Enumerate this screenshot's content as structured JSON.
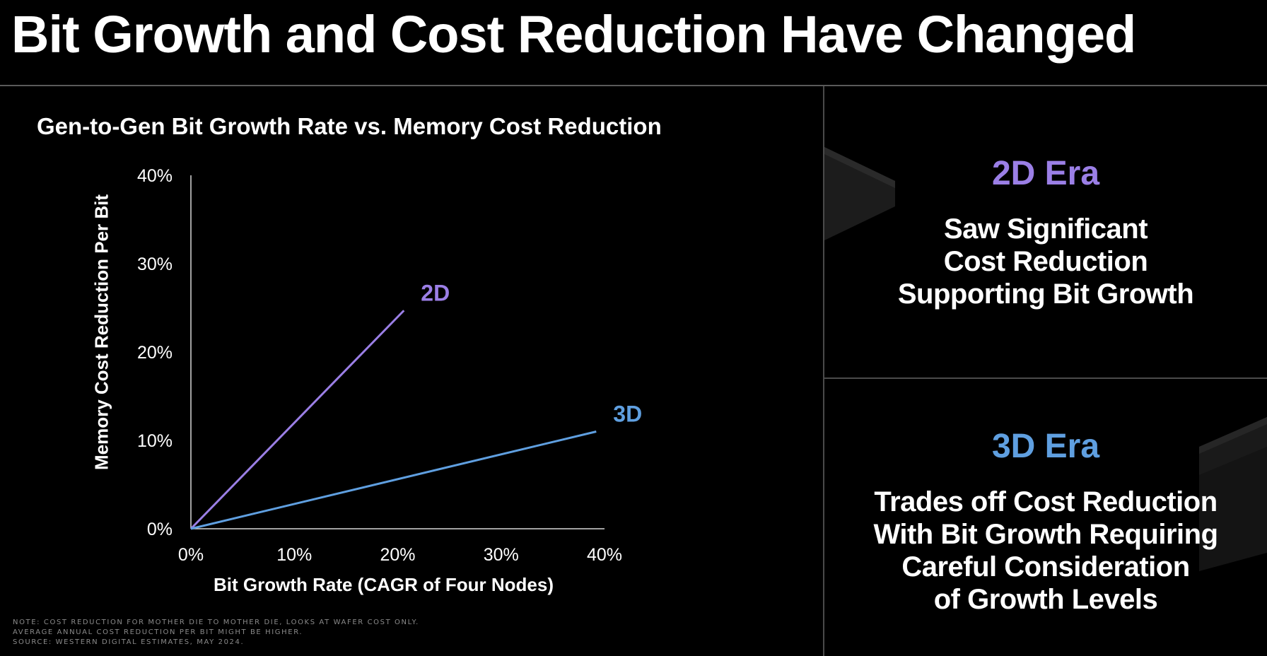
{
  "slide": {
    "title": "Bit Growth and Cost Reduction Have Changed"
  },
  "chart_data": {
    "type": "line",
    "title": "Gen-to-Gen Bit Growth Rate vs. Memory Cost Reduction",
    "xlabel": "Bit Growth Rate (CAGR of Four Nodes)",
    "ylabel": "Memory Cost Reduction Per Bit",
    "xlim": [
      0,
      40
    ],
    "ylim": [
      0,
      40
    ],
    "x_ticks": [
      "0%",
      "10%",
      "20%",
      "30%",
      "40%"
    ],
    "y_ticks": [
      "0%",
      "10%",
      "20%",
      "30%",
      "40%"
    ],
    "x_tick_values": [
      0,
      10,
      20,
      30,
      40
    ],
    "y_tick_values": [
      0,
      10,
      20,
      30,
      40
    ],
    "grid": false,
    "series": [
      {
        "name": "2D",
        "color": "#9b7fe6",
        "x": [
          0,
          20.6
        ],
        "y": [
          0,
          24.7
        ]
      },
      {
        "name": "3D",
        "color": "#5f9fe0",
        "x": [
          0,
          39.2
        ],
        "y": [
          0,
          11.0
        ]
      }
    ]
  },
  "panels": {
    "era2d": {
      "title": "2D Era",
      "title_color": "#9b7fe6",
      "lines": [
        "Saw Significant",
        "Cost Reduction",
        "Supporting Bit Growth"
      ]
    },
    "era3d": {
      "title": "3D Era",
      "title_color": "#5f9fe0",
      "lines": [
        "Trades off Cost Reduction",
        "With Bit Growth Requiring",
        "Careful Consideration",
        "of Growth Levels"
      ]
    }
  },
  "note": {
    "lines": [
      "NOTE: COST REDUCTION FOR MOTHER DIE TO MOTHER DIE, LOOKS AT WAFER COST ONLY.",
      "AVERAGE ANNUAL COST REDUCTION PER BIT MIGHT BE HIGHER.",
      "SOURCE: WESTERN DIGITAL ESTIMATES, MAY 2024."
    ]
  }
}
